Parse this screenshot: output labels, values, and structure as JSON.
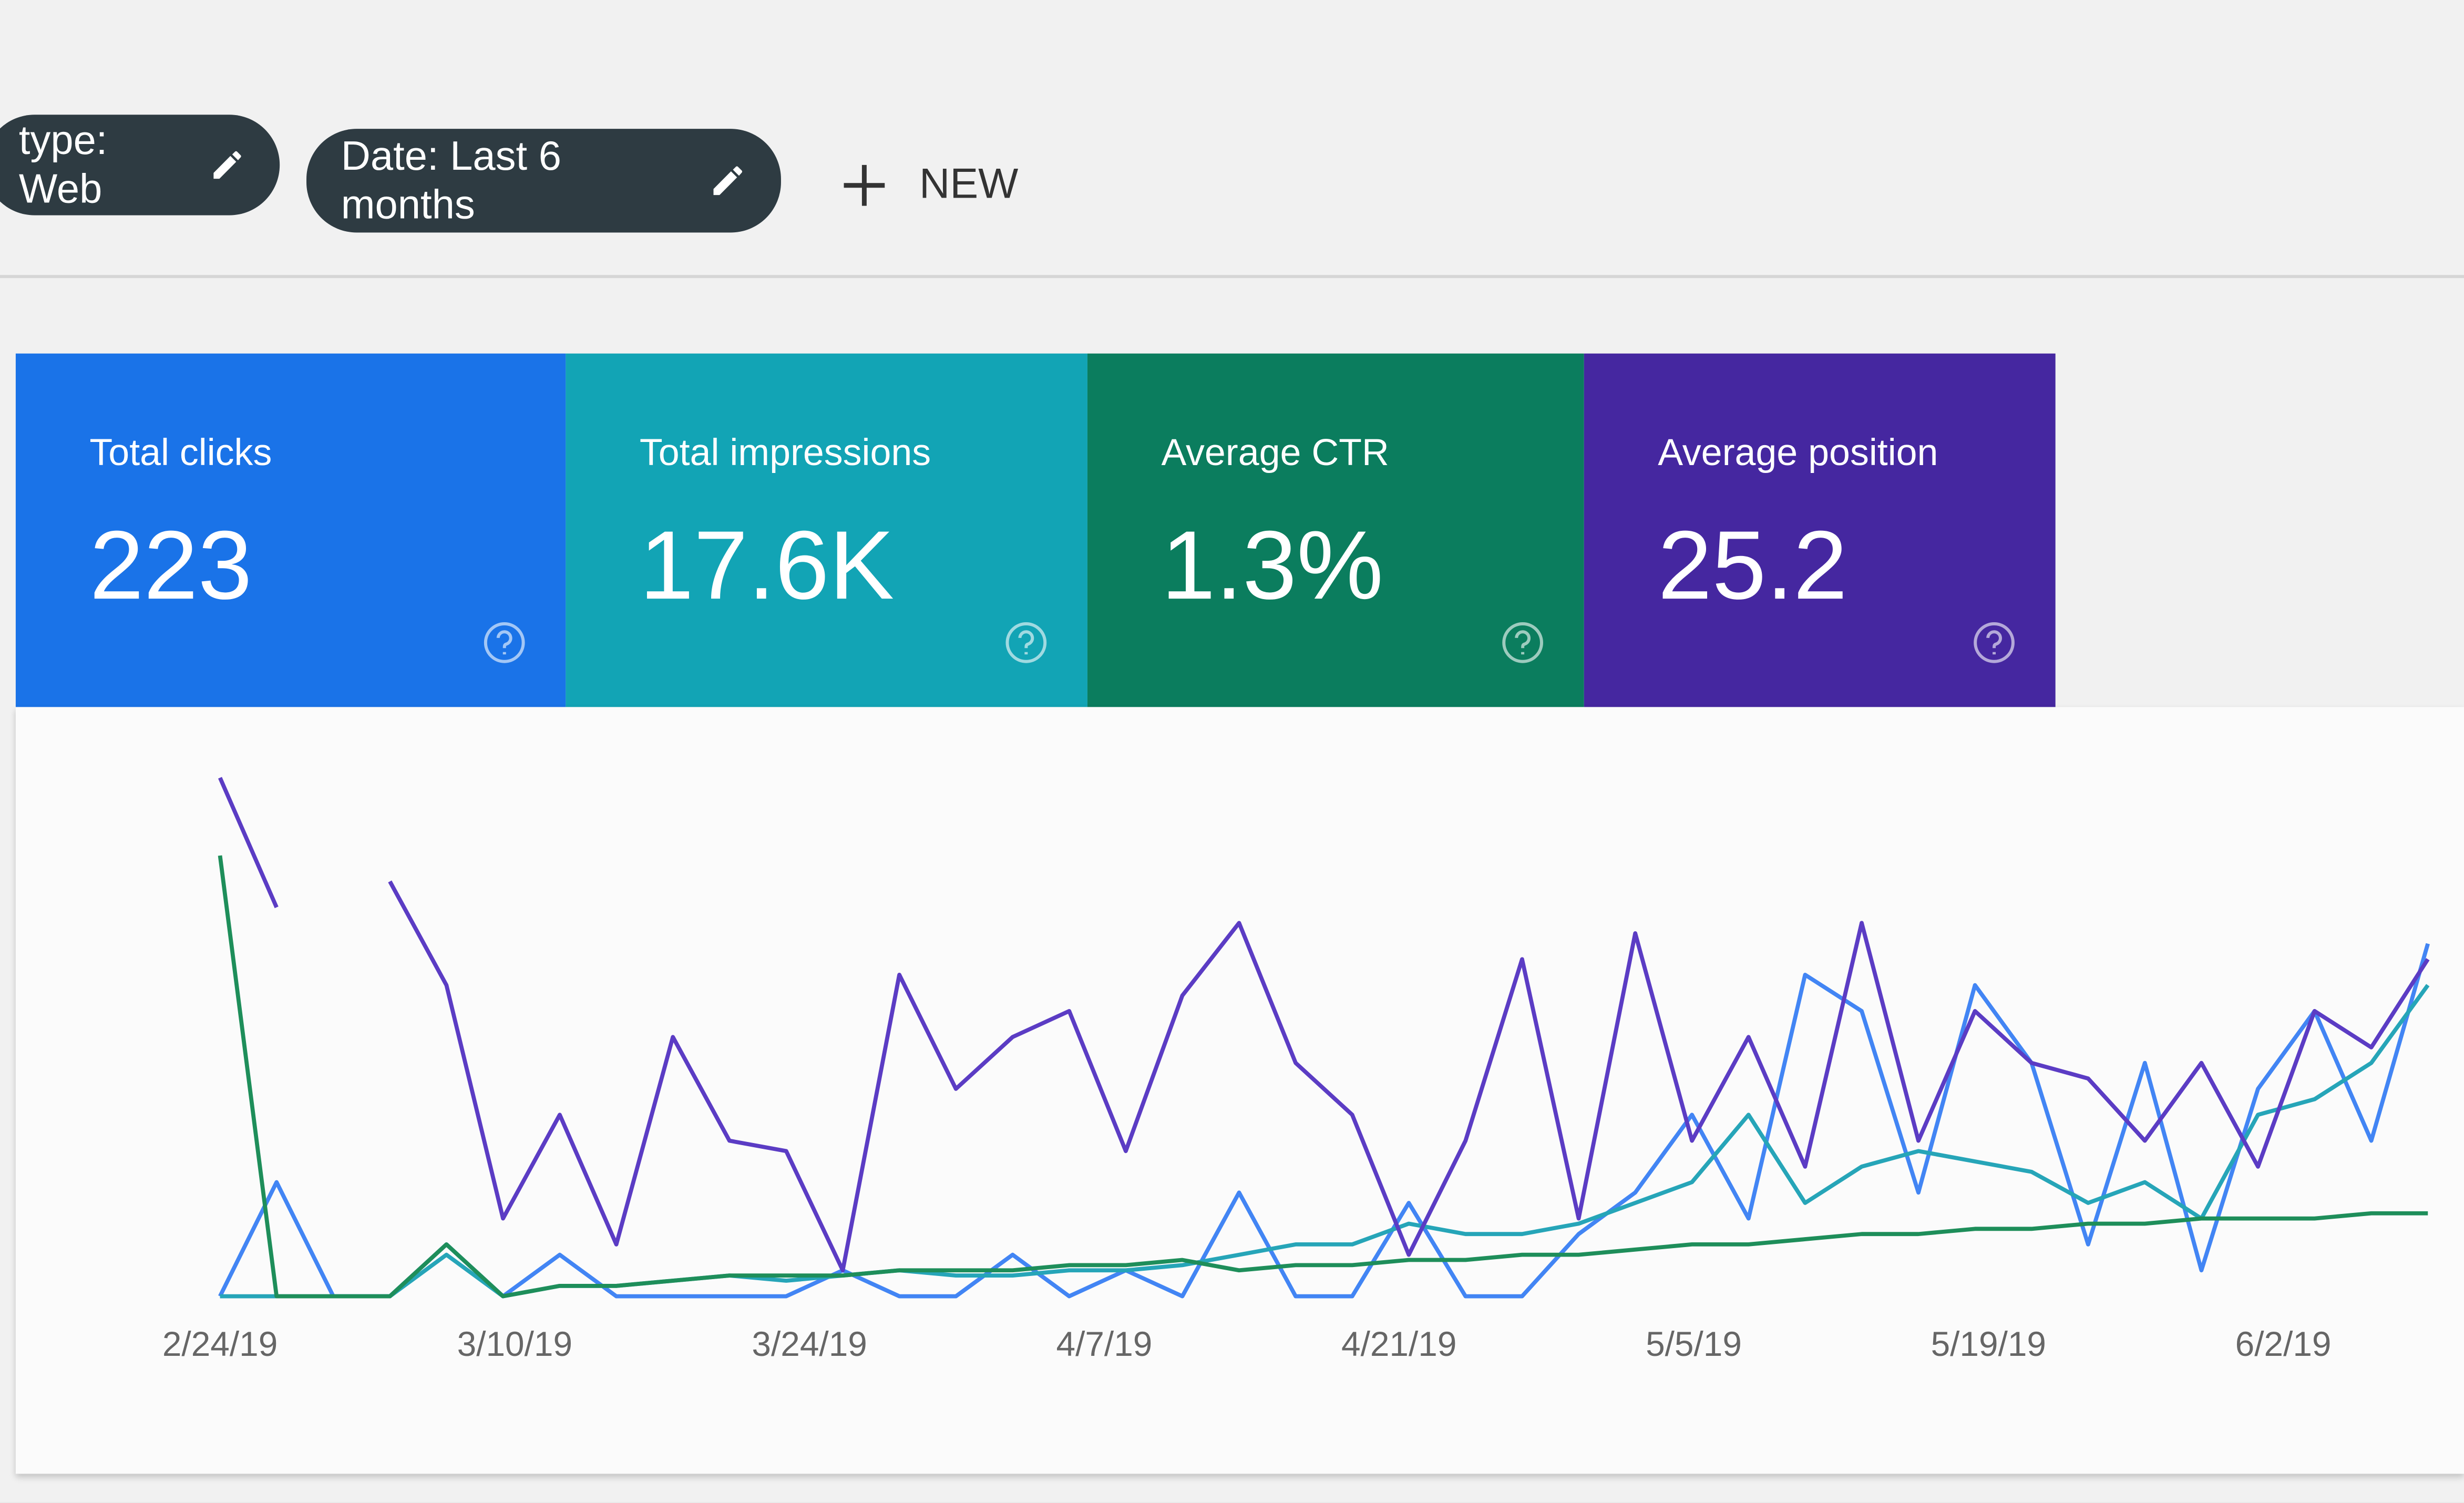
{
  "toolbar": {
    "chips": [
      "type: Web",
      "Date: Last 6 months"
    ],
    "new_button": "NEW"
  },
  "metrics": [
    {
      "label": "Total clicks",
      "value": "223",
      "color": "#1a73e8"
    },
    {
      "label": "Total impressions",
      "value": "17.6K",
      "color": "#12a4b5"
    },
    {
      "label": "Average CTR",
      "value": "1.3%",
      "color": "#0b7d5e"
    },
    {
      "label": "Average position",
      "value": "25.2",
      "color": "#4527a0"
    }
  ],
  "chart": {
    "type": "line",
    "x_labels": [
      "2/24/19",
      "3/10/19",
      "3/24/19",
      "4/7/19",
      "4/21/19",
      "5/5/19",
      "5/19/19",
      "6/2/19"
    ],
    "series": [
      {
        "color": "#4285f4",
        "values": [
          0,
          22,
          0,
          0,
          10,
          0,
          8,
          0,
          0,
          0,
          0,
          5,
          0,
          0,
          8,
          0,
          5,
          0,
          20,
          0,
          0,
          18,
          0,
          0,
          12,
          20,
          35,
          15,
          62,
          55,
          20,
          60,
          45,
          10,
          45,
          5,
          40,
          55,
          30,
          68
        ]
      },
      {
        "color": "#26a5b8",
        "values": [
          0,
          0,
          0,
          0,
          8,
          0,
          2,
          2,
          3,
          4,
          3,
          4,
          5,
          4,
          4,
          5,
          5,
          6,
          8,
          10,
          10,
          14,
          12,
          12,
          14,
          18,
          22,
          35,
          18,
          25,
          28,
          26,
          24,
          18,
          22,
          15,
          35,
          38,
          45,
          60
        ]
      },
      {
        "color": "#1e8e5a",
        "values": [
          85,
          0,
          0,
          0,
          10,
          0,
          2,
          2,
          3,
          4,
          4,
          4,
          5,
          5,
          5,
          6,
          6,
          7,
          5,
          6,
          6,
          7,
          7,
          8,
          8,
          9,
          10,
          10,
          11,
          12,
          12,
          13,
          13,
          14,
          14,
          15,
          15,
          15,
          16,
          16
        ]
      },
      {
        "color": "#5b3cc4",
        "values": [
          100,
          75,
          null,
          80,
          60,
          15,
          35,
          10,
          50,
          30,
          28,
          5,
          62,
          40,
          50,
          55,
          28,
          58,
          72,
          45,
          35,
          8,
          30,
          65,
          15,
          70,
          30,
          50,
          25,
          72,
          30,
          55,
          45,
          42,
          30,
          45,
          25,
          55,
          48,
          65
        ]
      }
    ]
  }
}
